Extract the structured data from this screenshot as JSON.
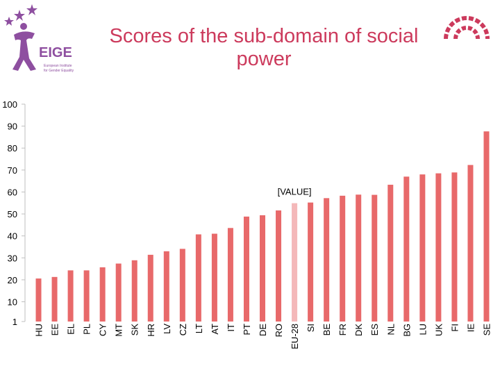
{
  "title": "Scores of the sub-domain of social power",
  "logo": {
    "name": "EIGE",
    "tagline_line1": "European Institute",
    "tagline_line2": "for Gender Equality"
  },
  "colors": {
    "bar": "#e8696a",
    "highlight": "#f4b8b9",
    "title": "#cc3a5c",
    "logo": "#8e4fa0"
  },
  "chart_data": {
    "type": "bar",
    "title": "Scores of the sub-domain of social power",
    "xlabel": "",
    "ylabel": "",
    "ylim": [
      1,
      100
    ],
    "yticks": [
      "1",
      "10",
      "20",
      "30",
      "40",
      "50",
      "60",
      "70",
      "80",
      "90",
      "100"
    ],
    "grid": false,
    "legend": "none",
    "categories": [
      "HU",
      "EE",
      "EL",
      "PL",
      "CY",
      "MT",
      "SK",
      "HR",
      "LV",
      "CZ",
      "LT",
      "AT",
      "IT",
      "PT",
      "DE",
      "RO",
      "EU-28",
      "SI",
      "BE",
      "FR",
      "DK",
      "ES",
      "NL",
      "BG",
      "LU",
      "UK",
      "FI",
      "IE",
      "SE"
    ],
    "values": [
      20.6,
      21.3,
      24.3,
      24.3,
      25.7,
      27.4,
      28.9,
      31.4,
      33.0,
      34.1,
      40.7,
      41.0,
      43.6,
      48.8,
      49.4,
      51.6,
      54.9,
      55.2,
      57.2,
      58.3,
      58.8,
      58.7,
      63.3,
      67.0,
      68.0,
      68.5,
      68.9,
      72.3,
      87.6
    ],
    "highlight_category": "EU-28",
    "annotations": [
      {
        "category": "EU-28",
        "text": "[VALUE]"
      }
    ]
  }
}
